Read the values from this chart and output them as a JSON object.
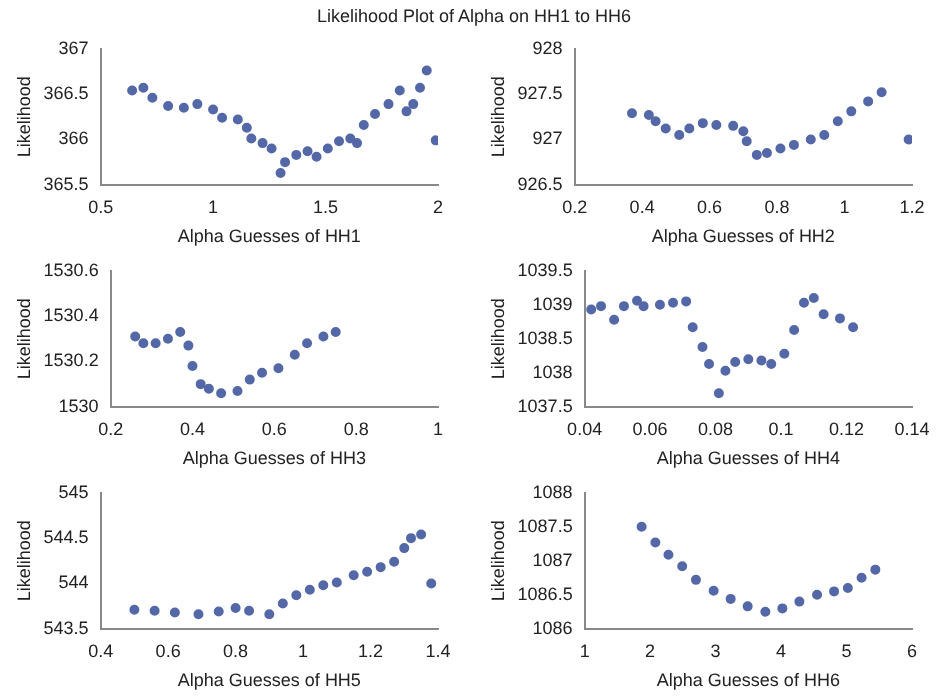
{
  "chart_data": [
    {
      "type": "scatter",
      "title": "Likelihood Plot of Alpha on HH1 to HH6",
      "xlabel": "Alpha Guesses of HH1",
      "ylabel": "Likelihood",
      "marker": "circle",
      "xlim": [
        0.5,
        2
      ],
      "xticks": [
        0.5,
        1,
        1.5,
        2
      ],
      "ylim": [
        365.5,
        367
      ],
      "yticks": [
        365.5,
        366,
        366.5,
        367
      ],
      "x": [
        0.64,
        0.69,
        0.73,
        0.8,
        0.87,
        0.93,
        1.0,
        1.04,
        1.11,
        1.15,
        1.17,
        1.22,
        1.26,
        1.3,
        1.32,
        1.37,
        1.42,
        1.46,
        1.51,
        1.56,
        1.61,
        1.64,
        1.67,
        1.72,
        1.78,
        1.83,
        1.86,
        1.89,
        1.92,
        1.95,
        1.99
      ],
      "series": [
        {
          "color": "#5468a8",
          "values": [
            366.54,
            366.57,
            366.46,
            366.37,
            366.35,
            366.39,
            366.33,
            366.24,
            366.22,
            366.13,
            366.01,
            365.96,
            365.9,
            365.63,
            365.75,
            365.83,
            365.87,
            365.81,
            365.9,
            365.98,
            366.01,
            365.96,
            366.16,
            366.28,
            366.39,
            366.54,
            366.31,
            366.39,
            366.57,
            366.76,
            365.99
          ]
        }
      ]
    },
    {
      "type": "scatter",
      "xlabel": "Alpha Guesses of HH2",
      "ylabel": "Likelihood",
      "marker": "circle",
      "xlim": [
        0.2,
        1.2
      ],
      "xticks": [
        0.2,
        0.4,
        0.6,
        0.8,
        1,
        1.2
      ],
      "ylim": [
        926.5,
        928
      ],
      "yticks": [
        926.5,
        927,
        927.5,
        928
      ],
      "x": [
        0.37,
        0.42,
        0.44,
        0.47,
        0.51,
        0.54,
        0.58,
        0.62,
        0.67,
        0.7,
        0.71,
        0.74,
        0.77,
        0.81,
        0.85,
        0.9,
        0.94,
        0.98,
        1.02,
        1.07,
        1.11,
        1.19
      ],
      "series": [
        {
          "color": "#5468a8",
          "values": [
            927.29,
            927.27,
            927.2,
            927.12,
            927.05,
            927.12,
            927.18,
            927.16,
            927.15,
            927.09,
            926.98,
            926.83,
            926.85,
            926.9,
            926.94,
            927.0,
            927.05,
            927.2,
            927.31,
            927.42,
            927.52,
            927.0
          ]
        }
      ]
    },
    {
      "type": "scatter",
      "xlabel": "Alpha Guesses of HH3",
      "ylabel": "Likelihood",
      "marker": "circle",
      "xlim": [
        0.2,
        1
      ],
      "xticks": [
        0.2,
        0.4,
        0.6,
        0.8,
        1
      ],
      "ylim": [
        1530,
        1530.6
      ],
      "yticks": [
        1530,
        1530.2,
        1530.4,
        1530.6
      ],
      "x": [
        0.26,
        0.28,
        0.31,
        0.34,
        0.37,
        0.39,
        0.4,
        0.42,
        0.44,
        0.47,
        0.51,
        0.54,
        0.57,
        0.61,
        0.65,
        0.68,
        0.72,
        0.75
      ],
      "series": [
        {
          "color": "#5468a8",
          "values": [
            1530.31,
            1530.28,
            1530.28,
            1530.3,
            1530.33,
            1530.27,
            1530.18,
            1530.1,
            1530.08,
            1530.06,
            1530.07,
            1530.12,
            1530.15,
            1530.17,
            1530.23,
            1530.28,
            1530.31,
            1530.33
          ]
        }
      ]
    },
    {
      "type": "scatter",
      "xlabel": "Alpha Guesses of HH4",
      "ylabel": "Likelihood",
      "marker": "circle",
      "xlim": [
        0.04,
        0.14
      ],
      "xticks": [
        0.04,
        0.06,
        0.08,
        0.1,
        0.12,
        0.14
      ],
      "ylim": [
        1037.5,
        1039.5
      ],
      "yticks": [
        1037.5,
        1038,
        1038.5,
        1039,
        1039.5
      ],
      "x": [
        0.042,
        0.045,
        0.049,
        0.052,
        0.056,
        0.058,
        0.063,
        0.067,
        0.071,
        0.073,
        0.076,
        0.078,
        0.081,
        0.083,
        0.086,
        0.09,
        0.094,
        0.097,
        0.101,
        0.104,
        0.107,
        0.11,
        0.113,
        0.118,
        0.122
      ],
      "series": [
        {
          "color": "#5468a8",
          "values": [
            1038.93,
            1038.98,
            1038.78,
            1038.98,
            1039.06,
            1038.98,
            1039.0,
            1039.03,
            1039.05,
            1038.67,
            1038.38,
            1038.13,
            1037.7,
            1038.03,
            1038.16,
            1038.2,
            1038.18,
            1038.13,
            1038.28,
            1038.63,
            1039.03,
            1039.1,
            1038.86,
            1038.8,
            1038.67
          ]
        }
      ]
    },
    {
      "type": "scatter",
      "xlabel": "Alpha Guesses of HH5",
      "ylabel": "Likelihood",
      "marker": "circle",
      "xlim": [
        0.4,
        1.4
      ],
      "xticks": [
        0.4,
        0.6,
        0.8,
        1,
        1.2,
        1.4
      ],
      "ylim": [
        543.5,
        545
      ],
      "yticks": [
        543.5,
        544,
        544.5,
        545
      ],
      "x": [
        0.5,
        0.56,
        0.62,
        0.69,
        0.75,
        0.8,
        0.84,
        0.9,
        0.94,
        0.98,
        1.02,
        1.06,
        1.1,
        1.15,
        1.19,
        1.23,
        1.27,
        1.3,
        1.32,
        1.35,
        1.38
      ],
      "series": [
        {
          "color": "#5468a8",
          "values": [
            543.71,
            543.7,
            543.68,
            543.66,
            543.69,
            543.73,
            543.7,
            543.66,
            543.78,
            543.87,
            543.93,
            543.98,
            544.01,
            544.09,
            544.13,
            544.18,
            544.24,
            544.39,
            544.5,
            544.54,
            544.0
          ]
        }
      ]
    },
    {
      "type": "scatter",
      "xlabel": "Alpha Guesses of HH6",
      "ylabel": "Likelihood",
      "marker": "circle",
      "xlim": [
        1,
        6
      ],
      "xticks": [
        1,
        2,
        3,
        4,
        5,
        6
      ],
      "ylim": [
        1086,
        1088
      ],
      "yticks": [
        1086,
        1086.5,
        1087,
        1087.5,
        1088
      ],
      "x": [
        1.87,
        2.08,
        2.28,
        2.49,
        2.7,
        2.97,
        3.23,
        3.49,
        3.76,
        4.02,
        4.28,
        4.55,
        4.81,
        5.02,
        5.23,
        5.44
      ],
      "series": [
        {
          "color": "#5468a8",
          "values": [
            1087.5,
            1087.27,
            1087.09,
            1086.92,
            1086.72,
            1086.56,
            1086.44,
            1086.33,
            1086.25,
            1086.3,
            1086.4,
            1086.5,
            1086.55,
            1086.6,
            1086.75,
            1086.87
          ]
        }
      ]
    }
  ]
}
